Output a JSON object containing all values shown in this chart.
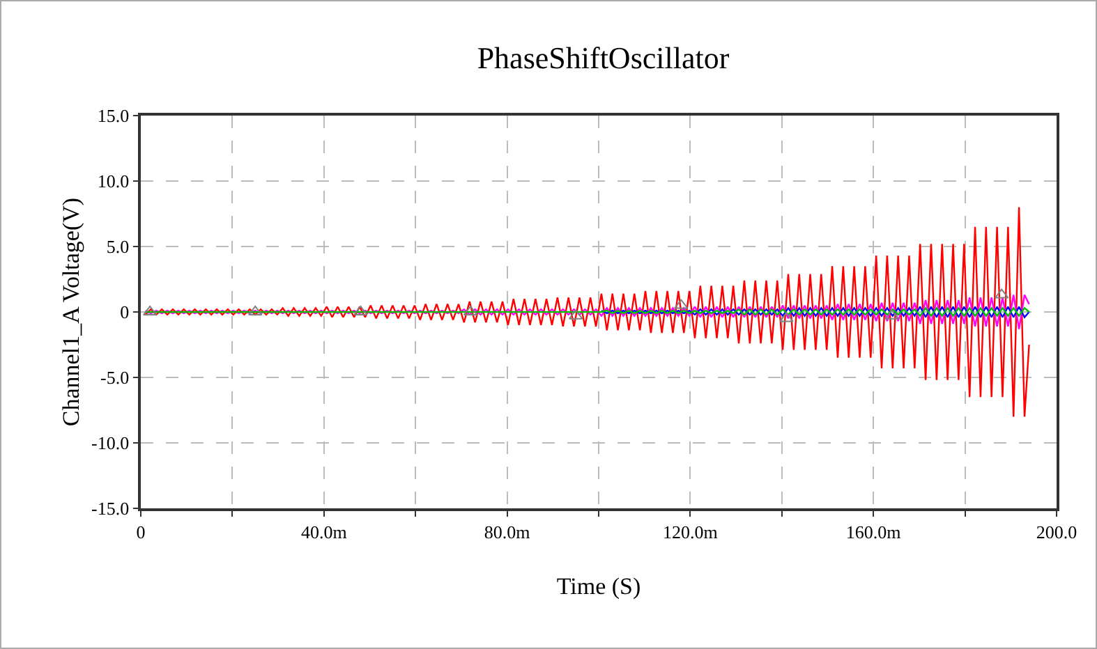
{
  "chart_data": {
    "type": "line",
    "title": "PhaseShiftOscillator",
    "xlabel": "Time (S)",
    "ylabel": "Channel1_A Voltage(V)",
    "x": [
      1,
      2.2,
      3.4,
      4.6,
      5.8,
      7,
      8.2,
      9.4,
      10.6,
      11.8,
      13,
      14.2,
      15.4,
      16.6,
      17.8,
      19,
      20.2,
      21.4,
      22.6,
      23.8,
      25,
      26.2,
      27.4,
      28.6,
      29.8,
      31,
      32.2,
      33.4,
      34.6,
      35.8,
      37,
      38.2,
      39.4,
      40.6,
      41.8,
      43,
      44.2,
      45.4,
      46.6,
      47.8,
      49,
      50.2,
      51.4,
      52.6,
      53.8,
      55,
      56.2,
      57.4,
      58.6,
      59.8,
      61,
      62.2,
      63.4,
      64.6,
      65.8,
      67,
      68.2,
      69.4,
      70.6,
      71.8,
      73,
      74.2,
      75.4,
      76.6,
      77.8,
      79,
      80.2,
      81.4,
      82.6,
      83.8,
      85,
      86.2,
      87.4,
      88.6,
      89.8,
      91,
      92.2,
      93.4,
      94.6,
      95.8,
      97,
      98.2,
      99.4,
      100.6,
      101.8,
      103,
      104.2,
      105.4,
      106.6,
      107.8,
      109,
      110.2,
      111.4,
      112.6,
      113.8,
      115,
      116.2,
      117.4,
      118.6,
      119.8,
      121,
      122.2,
      123.4,
      124.6,
      125.8,
      127,
      128.2,
      129.4,
      130.6,
      131.8,
      133,
      134.2,
      135.4,
      136.6,
      137.8,
      139,
      140.2,
      141.4,
      142.6,
      143.8,
      145,
      146.2,
      147.4,
      148.6,
      149.8,
      151,
      152.2,
      153.4,
      154.6,
      155.8,
      157,
      158.2,
      159.4,
      160.6,
      161.8,
      163,
      164.2,
      165.4,
      166.6,
      167.8,
      169,
      170.2,
      171.4,
      172.6,
      173.8,
      175,
      176.2,
      177.4,
      178.6,
      179.8,
      181,
      182.2,
      183.4,
      184.6,
      185.8,
      187,
      188.2,
      189.4,
      190.6,
      191.8,
      193,
      194
    ],
    "series": [
      {
        "color": "#ff0000",
        "values": [
          -0.2,
          0.2,
          -0.2,
          0.2,
          -0.2,
          0.2,
          -0.2,
          0.2,
          -0.2,
          0.2,
          -0.2,
          0.2,
          -0.2,
          0.2,
          -0.2,
          0.2,
          -0.2,
          0.2,
          -0.2,
          0.2,
          -0.2,
          0.2,
          -0.2,
          0.2,
          -0.2,
          0.3,
          -0.3,
          0.3,
          -0.3,
          0.3,
          -0.3,
          0.3,
          -0.3,
          0.4,
          -0.4,
          0.4,
          -0.4,
          0.4,
          -0.4,
          0.4,
          -0.4,
          0.5,
          -0.5,
          0.5,
          -0.5,
          0.5,
          -0.5,
          0.5,
          -0.5,
          0.5,
          -0.6,
          0.6,
          -0.6,
          0.6,
          -0.6,
          0.6,
          -0.6,
          0.6,
          -0.8,
          0.8,
          -0.8,
          0.8,
          -0.8,
          0.8,
          -0.8,
          0.8,
          -1.0,
          1.0,
          -1.0,
          1.0,
          -1.0,
          1.0,
          -1.0,
          1.0,
          -1.0,
          1.1,
          -1.1,
          1.1,
          -1.1,
          1.1,
          -1.1,
          1.1,
          -1.1,
          1.4,
          -1.4,
          1.4,
          -1.4,
          1.4,
          -1.4,
          1.4,
          -1.4,
          1.6,
          -1.6,
          1.6,
          -1.6,
          1.6,
          -1.6,
          1.6,
          -1.6,
          1.6,
          -2.0,
          2.0,
          -2.0,
          2.0,
          -2.0,
          2.0,
          -2.0,
          2.0,
          -2.4,
          2.4,
          -2.4,
          2.4,
          -2.4,
          2.4,
          -2.4,
          2.4,
          -2.9,
          2.9,
          -2.9,
          2.9,
          -2.9,
          2.9,
          -2.9,
          2.9,
          -2.9,
          3.5,
          -3.5,
          3.5,
          -3.5,
          3.5,
          -3.5,
          3.5,
          -3.5,
          4.3,
          -4.3,
          4.3,
          -4.3,
          4.3,
          -4.3,
          4.3,
          -4.3,
          5.2,
          -5.2,
          5.2,
          -5.2,
          5.2,
          -5.2,
          5.2,
          -5.2,
          5.2,
          -6.5,
          6.5,
          -6.5,
          6.5,
          -6.5,
          6.5,
          -6.5,
          6.5,
          -8.0,
          8.0,
          -8.0,
          -2.5
        ]
      },
      {
        "color": "#ff00ff",
        "values": [
          0.1,
          -0.1,
          0.1,
          -0.1,
          0.1,
          -0.1,
          0.1,
          -0.1,
          0.1,
          -0.1,
          0.1,
          -0.1,
          0.1,
          -0.1,
          0.1,
          -0.1,
          0.1,
          -0.1,
          0.1,
          -0.1,
          0.1,
          -0.1,
          0.1,
          -0.1,
          0.1,
          -0.1,
          0.1,
          -0.1,
          0.1,
          -0.1,
          0.1,
          -0.1,
          0.1,
          -0.1,
          0.1,
          -0.1,
          0.1,
          -0.1,
          0.1,
          -0.1,
          0.1,
          -0.1,
          0.1,
          -0.1,
          0.1,
          -0.1,
          0.1,
          -0.1,
          0.1,
          -0.1,
          0.1,
          -0.1,
          0.1,
          -0.1,
          0.1,
          -0.1,
          0.1,
          -0.1,
          0.2,
          -0.2,
          0.2,
          -0.2,
          0.2,
          -0.2,
          0.2,
          -0.2,
          0.2,
          -0.2,
          0.2,
          -0.2,
          0.2,
          -0.2,
          0.2,
          -0.2,
          0.2,
          -0.2,
          0.2,
          -0.2,
          0.2,
          -0.2,
          0.2,
          -0.2,
          0.2,
          -0.3,
          0.3,
          -0.3,
          0.3,
          -0.3,
          0.3,
          -0.3,
          0.3,
          -0.3,
          0.3,
          -0.3,
          0.3,
          -0.3,
          0.3,
          -0.3,
          0.3,
          -0.3,
          0.4,
          -0.4,
          0.4,
          -0.4,
          0.4,
          -0.4,
          0.4,
          -0.4,
          0.4,
          -0.4,
          0.4,
          -0.4,
          0.4,
          -0.4,
          0.4,
          -0.4,
          0.5,
          -0.5,
          0.5,
          -0.5,
          0.5,
          -0.5,
          0.5,
          -0.5,
          0.5,
          -0.6,
          0.6,
          -0.6,
          0.6,
          -0.6,
          0.6,
          -0.6,
          0.6,
          -0.7,
          0.7,
          -0.7,
          0.7,
          -0.7,
          0.7,
          -0.7,
          0.7,
          -0.9,
          0.9,
          -0.9,
          0.9,
          -0.9,
          0.9,
          -0.9,
          0.9,
          -0.9,
          1.1,
          -1.1,
          1.1,
          -1.1,
          1.1,
          -1.1,
          1.1,
          -1.1,
          1.3,
          -1.3,
          1.3,
          0.6
        ]
      },
      {
        "color": "#0000ff",
        "values": [
          null,
          null,
          null,
          null,
          null,
          null,
          null,
          null,
          null,
          null,
          null,
          null,
          null,
          null,
          null,
          null,
          null,
          null,
          null,
          null,
          null,
          null,
          null,
          null,
          null,
          null,
          null,
          null,
          null,
          null,
          null,
          null,
          null,
          null,
          null,
          null,
          null,
          null,
          null,
          null,
          null,
          null,
          null,
          null,
          null,
          null,
          null,
          null,
          null,
          null,
          null,
          null,
          null,
          null,
          null,
          null,
          null,
          null,
          null,
          null,
          null,
          null,
          null,
          null,
          null,
          null,
          null,
          null,
          null,
          null,
          null,
          null,
          null,
          null,
          null,
          null,
          null,
          null,
          null,
          null,
          null,
          null,
          null,
          0.1,
          -0.1,
          0.1,
          -0.1,
          0.1,
          -0.1,
          0.1,
          -0.1,
          0.1,
          -0.1,
          0.1,
          -0.1,
          0.1,
          -0.1,
          0.1,
          -0.1,
          0.1,
          -0.2,
          0.2,
          -0.2,
          0.2,
          -0.2,
          0.2,
          -0.2,
          0.2,
          -0.2,
          0.2,
          -0.2,
          0.2,
          -0.2,
          0.2,
          -0.2,
          0.2,
          -0.3,
          0.3,
          -0.3,
          0.3,
          -0.3,
          0.3,
          -0.3,
          0.3,
          -0.3,
          0.3,
          -0.3,
          0.3,
          -0.3,
          0.3,
          -0.3,
          0.3,
          -0.3,
          0.3,
          -0.3,
          0.3,
          -0.3,
          0.3,
          -0.3,
          0.3,
          -0.3,
          0.4,
          -0.4,
          0.4,
          -0.4,
          0.4,
          -0.4,
          0.4,
          -0.4,
          0.4,
          -0.4,
          0.4,
          -0.4,
          0.4,
          -0.4,
          0.4,
          -0.4,
          0.4,
          -0.4,
          0.4,
          -0.4,
          0
        ]
      },
      {
        "color": "#00c000",
        "values": [
          0,
          0,
          0,
          0,
          0,
          0,
          0,
          0,
          0,
          0,
          0,
          0,
          0,
          0,
          0,
          0,
          0,
          0,
          0,
          0,
          0,
          0,
          0,
          0,
          0,
          0,
          0,
          0,
          0,
          0,
          0,
          0,
          0,
          0,
          0,
          0,
          0,
          0,
          0,
          0,
          0,
          0,
          0,
          0,
          0,
          0,
          0,
          0,
          0,
          0,
          0,
          0,
          0,
          0,
          0,
          0,
          0,
          0,
          0,
          0,
          0,
          0,
          0,
          0,
          0,
          0,
          0,
          0,
          0,
          0,
          0,
          0,
          0,
          0,
          0,
          0,
          0,
          0,
          0,
          0,
          0,
          0,
          0,
          0,
          0.1,
          -0.1,
          0.1,
          -0.1,
          0.1,
          -0.1,
          0.1,
          -0.1,
          0.1,
          -0.1,
          0.1,
          -0.1,
          0.1,
          -0.1,
          0.1,
          -0.1,
          0.1,
          -0.1,
          0.1,
          -0.1,
          0.1,
          -0.1,
          0.1,
          -0.1,
          0.2,
          -0.2,
          0.2,
          -0.2,
          0.2,
          -0.2,
          0.2,
          -0.2,
          0.2,
          -0.2,
          0.2,
          -0.2,
          0.2,
          -0.2,
          0.2,
          -0.2,
          0.2,
          -0.2,
          0.2,
          -0.2,
          0.2,
          -0.2,
          0.2,
          -0.2,
          0.2,
          -0.2,
          0.2,
          -0.2,
          0.2,
          -0.2,
          0.2,
          -0.2,
          0.2,
          -0.3,
          0.3,
          -0.3,
          0.3,
          -0.3,
          0.3,
          -0.3,
          0.3,
          -0.3,
          0.3,
          -0.3,
          0.3,
          -0.3,
          0.3,
          -0.3,
          0.3,
          -0.3,
          0.3,
          -0.3,
          0.3,
          0
        ]
      },
      {
        "type": "scatter",
        "marker": "triangle",
        "color": "#808080",
        "x": [
          2,
          25,
          48,
          72,
          95,
          118,
          141,
          164,
          188
        ],
        "values": [
          0,
          0,
          0,
          0,
          -0.3,
          0.5,
          -0.5,
          -0.3,
          1.3
        ]
      }
    ],
    "xlim": [
      0,
      200
    ],
    "xticks": [
      0,
      {
        "value": 20,
        "label": null
      },
      {
        "value": 40,
        "label": "40.0m"
      },
      {
        "value": 60,
        "label": null
      },
      {
        "value": 80,
        "label": "80.0m"
      },
      {
        "value": 100,
        "label": null
      },
      {
        "value": 120,
        "label": "120.0m"
      },
      {
        "value": 140,
        "label": null
      },
      {
        "value": 160,
        "label": "160.0m"
      },
      {
        "value": 180,
        "label": null
      },
      {
        "value": 200,
        "label": "200.0"
      }
    ],
    "ylim": [
      -15,
      15
    ],
    "yticks": [
      {
        "value": -15,
        "label": "-15.0"
      },
      {
        "value": -10,
        "label": "-10.0"
      },
      {
        "value": -5,
        "label": "-5.0"
      },
      0,
      {
        "value": 5,
        "label": "5.0"
      },
      {
        "value": 10,
        "label": "10.0"
      },
      {
        "value": 15,
        "label": "15.0"
      }
    ],
    "grid": true,
    "line_style": "solid"
  }
}
